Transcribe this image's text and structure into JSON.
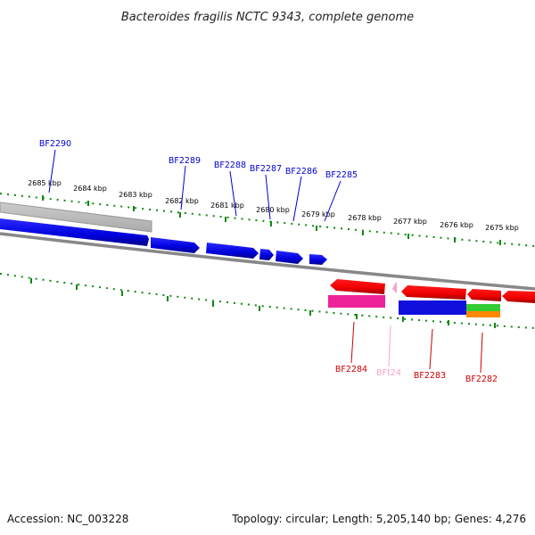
{
  "title": "Bacteroides fragilis NCTC 9343, complete genome",
  "footer": {
    "accession": "Accession: NC_003228",
    "topology": "Topology: circular; Length: 5,205,140 bp; Genes: 4,276"
  },
  "scale": {
    "labels": [
      "2685 kbp",
      "2684 kbp",
      "2683 kbp",
      "2682 kbp",
      "2681 kbp",
      "2680 kbp",
      "2679 kbp",
      "2678 kbp",
      "2677 kbp",
      "2676 kbp",
      "2675 kbp"
    ]
  },
  "genes_forward": [
    {
      "name": "BF2290",
      "color": "#0000cc"
    },
    {
      "name": "BF2289",
      "color": "#0000cc"
    },
    {
      "name": "BF2288",
      "color": "#0000cc"
    },
    {
      "name": "BF2287",
      "color": "#0000cc"
    },
    {
      "name": "BF2286",
      "color": "#0000cc"
    },
    {
      "name": "BF2285",
      "color": "#0000cc"
    }
  ],
  "genes_reverse": [
    {
      "name": "BF2284",
      "color": "#cc0000"
    },
    {
      "name": "BFt24",
      "color": "#f4a6c8"
    },
    {
      "name": "BF2283",
      "color": "#cc0000"
    },
    {
      "name": "BF2282",
      "color": "#cc0000"
    }
  ],
  "colors": {
    "cds": "#ff0000",
    "forward_cds": "#0000ee",
    "trna": "#f4a6c8",
    "tick": "#118811",
    "backbone": "#888888"
  }
}
